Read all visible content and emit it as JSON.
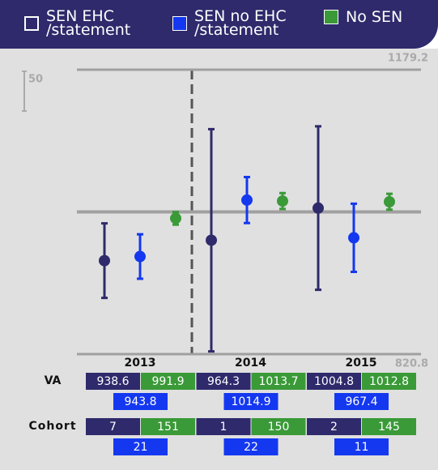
{
  "chart_data": {
    "type": "errorbar",
    "categories": [
      "2013",
      "2014",
      "2015"
    ],
    "series": [
      {
        "name": "SEN EHC\n/statement",
        "color": "#2e2a6b",
        "values": [
          938.6,
          964.3,
          1004.8
        ],
        "errors": [
          47,
          140,
          103
        ],
        "cohort": [
          7,
          1,
          2
        ]
      },
      {
        "name": "SEN no EHC\n/statement",
        "color": "#1438f0",
        "values": [
          943.8,
          1014.9,
          967.4
        ],
        "errors": [
          28,
          29,
          43
        ],
        "cohort": [
          21,
          22,
          11
        ]
      },
      {
        "name": "No SEN",
        "color": "#3a9a38",
        "values": [
          991.9,
          1013.7,
          1012.8
        ],
        "errors": [
          8,
          10,
          10
        ],
        "cohort": [
          151,
          150,
          145
        ]
      }
    ],
    "ylim": [
      820.8,
      1179.2
    ],
    "yticks": [
      820.8,
      1179.2
    ],
    "reference": 1000,
    "scale_bar": 50,
    "row_labels": [
      "VA",
      "Cohort"
    ]
  }
}
